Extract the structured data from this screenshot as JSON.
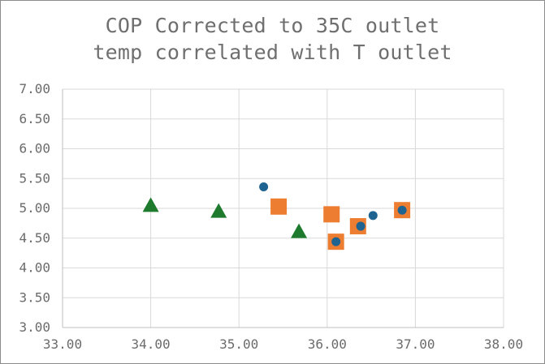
{
  "chart_data": {
    "type": "scatter",
    "title_lines": [
      "COP Corrected to 35C outlet",
      "temp correlated with T outlet"
    ],
    "xlabel": "",
    "ylabel": "",
    "xlim": [
      33,
      38
    ],
    "ylim": [
      3,
      7
    ],
    "x_ticks": [
      "33.00",
      "34.00",
      "35.00",
      "36.00",
      "37.00",
      "38.00"
    ],
    "y_ticks": [
      "3.00",
      "3.50",
      "4.00",
      "4.50",
      "5.00",
      "5.50",
      "6.00",
      "6.50",
      "7.00"
    ],
    "grid": true,
    "legend": "none",
    "series": [
      {
        "marker": "square",
        "color": "#ed7d31",
        "points": [
          [
            35.45,
            5.03
          ],
          [
            36.05,
            4.9
          ],
          [
            36.1,
            4.44
          ],
          [
            36.35,
            4.7
          ],
          [
            36.85,
            4.97
          ]
        ]
      },
      {
        "marker": "circle",
        "color": "#1f6391",
        "points": [
          [
            35.28,
            5.36
          ],
          [
            36.1,
            4.44
          ],
          [
            36.38,
            4.7
          ],
          [
            36.52,
            4.88
          ],
          [
            36.85,
            4.97
          ]
        ]
      },
      {
        "marker": "triangle",
        "color": "#1e7a2c",
        "points": [
          [
            34.0,
            5.05
          ],
          [
            34.77,
            4.95
          ],
          [
            35.68,
            4.61
          ]
        ]
      }
    ]
  }
}
